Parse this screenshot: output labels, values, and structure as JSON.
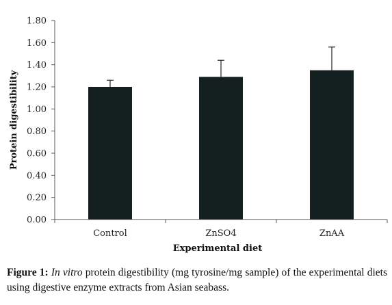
{
  "chart_data": {
    "type": "bar",
    "categories": [
      "Control",
      "ZnSO4",
      "ZnAA"
    ],
    "values": [
      1.2,
      1.29,
      1.35
    ],
    "error_upper": [
      0.06,
      0.15,
      0.21
    ],
    "xlabel": "Experimental diet",
    "ylabel": "Protein digestibility",
    "ylim": [
      0,
      1.8
    ],
    "yticks": [
      "0.00",
      "0.20",
      "0.40",
      "0.60",
      "0.80",
      "1.00",
      "1.20",
      "1.40",
      "1.60",
      "1.80"
    ],
    "grid": false,
    "bar_color": "#14201f"
  },
  "caption": {
    "label": "Figure 1:",
    "italic": "In vitro",
    "text": " protein digestibility (mg tyrosine/mg sample) of the experimental diets using digestive enzyme extracts from Asian seabass."
  }
}
